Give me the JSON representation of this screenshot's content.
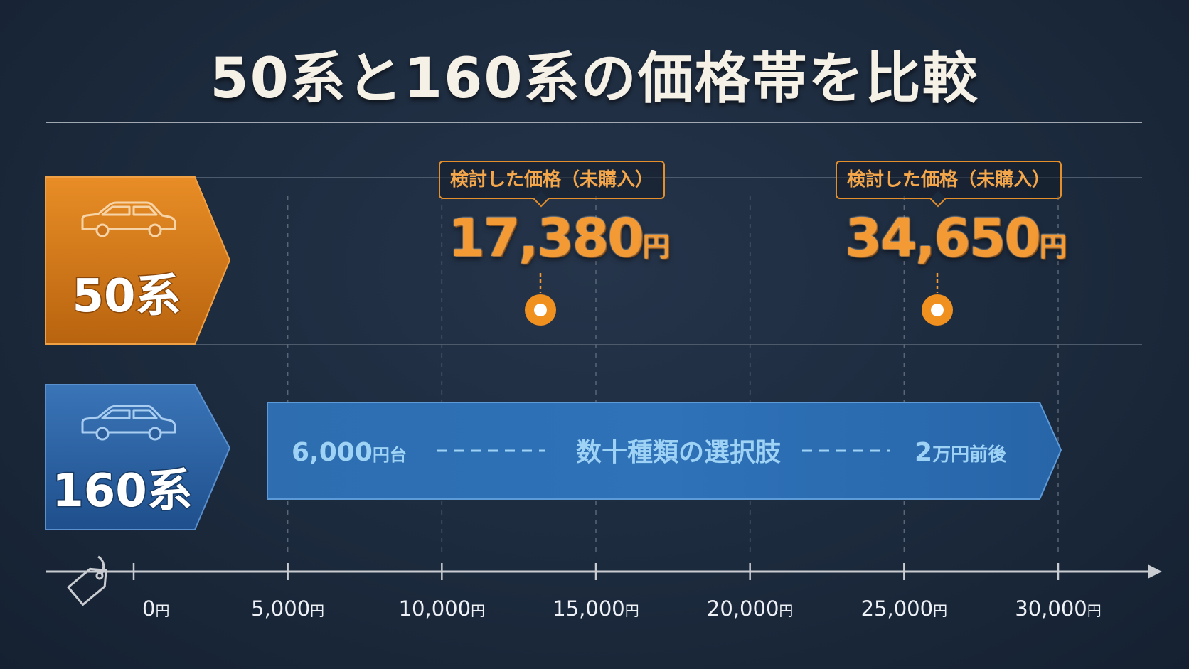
{
  "title": "50系と160系の価格帯を比較",
  "series": [
    {
      "name": "50系",
      "color": "#d9801f"
    },
    {
      "name": "160系",
      "color": "#2d64a4"
    }
  ],
  "chart_data": {
    "type": "bar",
    "title": "50系と160系の価格帯を比較",
    "xlim": [
      0,
      30000
    ],
    "x_ticks": [
      0,
      5000,
      10000,
      15000,
      20000,
      25000,
      30000
    ],
    "x_tick_labels": [
      "0",
      "5,000",
      "10,000",
      "15,000",
      "20,000",
      "25,000",
      "30,000"
    ],
    "x_unit": "円",
    "points_50": [
      {
        "label": "検討した価格（未購入）",
        "value": 17380,
        "value_text": "17,380",
        "unit": "円"
      },
      {
        "label": "検討した価格（未購入）",
        "value": 34650,
        "value_text": "34,650",
        "unit": "円"
      }
    ],
    "range_160": {
      "start_text": "6,000",
      "start_unit": "円台",
      "middle_text": "数十種類の選択肢",
      "end_text": "2",
      "end_unit": "万円前後"
    }
  }
}
